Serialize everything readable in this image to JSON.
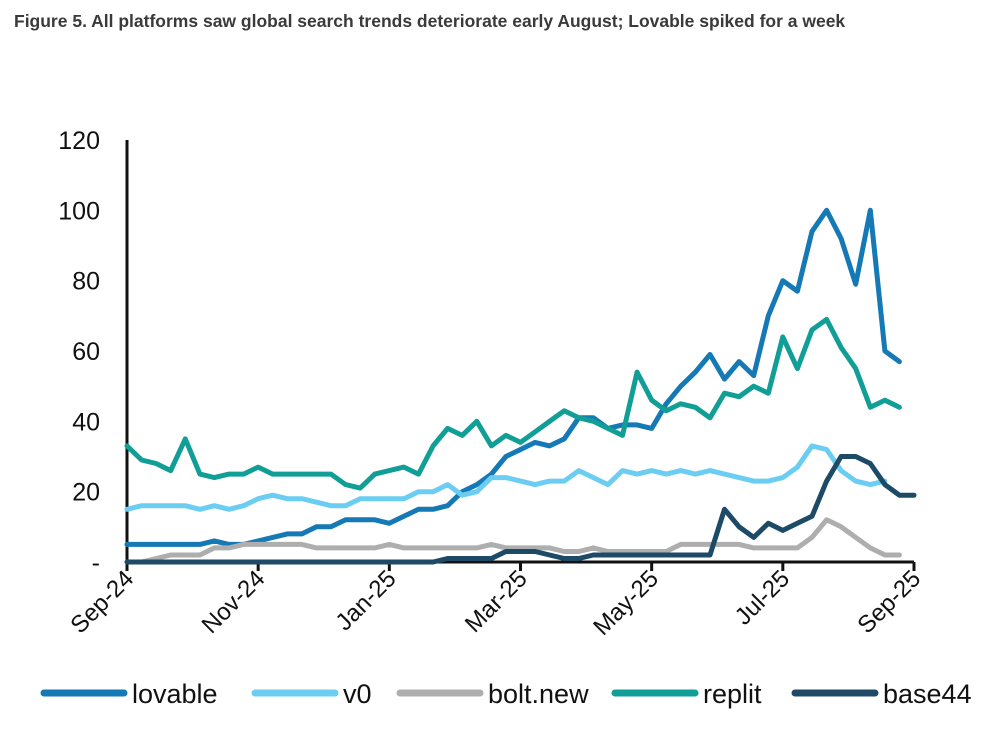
{
  "title": "Figure 5. All platforms saw global search trends deteriorate early August; Lovable spiked for a week",
  "chart_data": {
    "type": "line",
    "title": "Figure 5. All platforms saw global search trends deteriorate early August; Lovable spiked for a week",
    "xlabel": "",
    "ylabel": "",
    "ylim": [
      0,
      120
    ],
    "y_ticks": [
      "-",
      "20",
      "40",
      "60",
      "80",
      "100",
      "120"
    ],
    "x_ticks": [
      "Sep-24",
      "Nov-24",
      "Jan-25",
      "Mar-25",
      "May-25",
      "Jul-25",
      "Sep-25"
    ],
    "x_tick_index": [
      0,
      9,
      18,
      27,
      36,
      45,
      54
    ],
    "legend_position": "bottom",
    "series": [
      {
        "name": "lovable",
        "color": "#1479b4",
        "values": [
          5,
          5,
          5,
          5,
          5,
          5,
          6,
          5,
          5,
          6,
          7,
          8,
          8,
          10,
          10,
          12,
          12,
          12,
          11,
          13,
          15,
          15,
          16,
          20,
          22,
          25,
          30,
          32,
          34,
          33,
          35,
          41,
          41,
          38,
          39,
          39,
          38,
          45,
          50,
          54,
          59,
          52,
          57,
          53,
          70,
          80,
          77,
          94,
          100,
          92,
          79,
          100,
          60,
          57
        ]
      },
      {
        "name": "v0",
        "color": "#6acdf1",
        "values": [
          15,
          16,
          16,
          16,
          16,
          15,
          16,
          15,
          16,
          18,
          19,
          18,
          18,
          17,
          16,
          16,
          18,
          18,
          18,
          18,
          20,
          20,
          22,
          19,
          20,
          24,
          24,
          23,
          22,
          23,
          23,
          26,
          24,
          22,
          26,
          25,
          26,
          25,
          26,
          25,
          26,
          25,
          24,
          23,
          23,
          24,
          27,
          33,
          32,
          26,
          23,
          22,
          23
        ]
      },
      {
        "name": "bolt.new",
        "color": "#aeaeae",
        "values": [
          0,
          0,
          1,
          2,
          2,
          2,
          4,
          4,
          5,
          5,
          5,
          5,
          5,
          4,
          4,
          4,
          4,
          4,
          5,
          4,
          4,
          4,
          4,
          4,
          4,
          5,
          4,
          4,
          4,
          4,
          3,
          3,
          4,
          3,
          3,
          3,
          3,
          3,
          5,
          5,
          5,
          5,
          5,
          4,
          4,
          4,
          4,
          7,
          12,
          10,
          7,
          4,
          2,
          2
        ]
      },
      {
        "name": "replit",
        "color": "#109e96",
        "values": [
          33,
          29,
          28,
          26,
          35,
          25,
          24,
          25,
          25,
          27,
          25,
          25,
          25,
          25,
          25,
          22,
          21,
          25,
          26,
          27,
          25,
          33,
          38,
          36,
          40,
          33,
          36,
          34,
          37,
          40,
          43,
          41,
          40,
          38,
          36,
          54,
          46,
          43,
          45,
          44,
          41,
          48,
          47,
          50,
          48,
          64,
          55,
          66,
          69,
          61,
          55,
          44,
          46,
          44
        ]
      },
      {
        "name": "base44",
        "color": "#1c4a67",
        "values": [
          0,
          0,
          0,
          0,
          0,
          0,
          0,
          0,
          0,
          0,
          0,
          0,
          0,
          0,
          0,
          0,
          0,
          0,
          0,
          0,
          0,
          0,
          1,
          1,
          1,
          1,
          3,
          3,
          3,
          2,
          1,
          1,
          2,
          2,
          2,
          2,
          2,
          2,
          2,
          2,
          2,
          15,
          10,
          7,
          11,
          9,
          11,
          13,
          23,
          30,
          30,
          28,
          22,
          19,
          19
        ]
      }
    ]
  }
}
